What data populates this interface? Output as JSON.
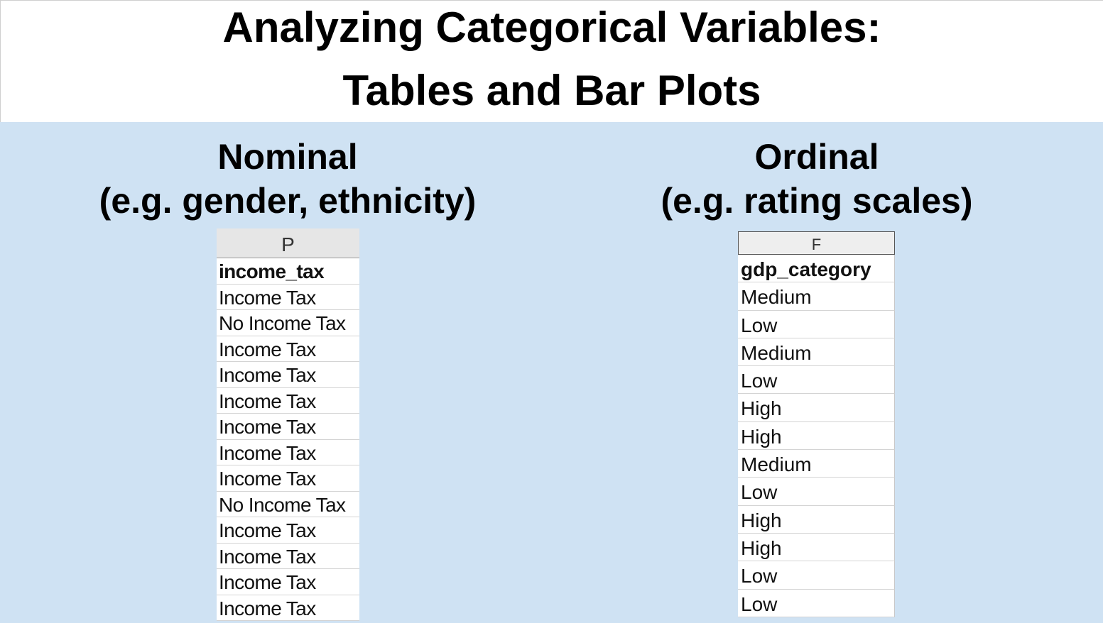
{
  "title": {
    "line1": "Analyzing Categorical Variables:",
    "line2": "Tables and Bar Plots"
  },
  "nominal": {
    "heading": "Nominal",
    "subheading": "(e.g. gender, ethnicity)",
    "column_letter": "P",
    "header": "income_tax",
    "rows": [
      "Income Tax",
      "No Income Tax",
      "Income Tax",
      "Income Tax",
      "Income Tax",
      "Income Tax",
      "Income Tax",
      "Income Tax",
      "No Income Tax",
      "Income Tax",
      "Income Tax",
      "Income Tax",
      "Income Tax"
    ]
  },
  "ordinal": {
    "heading": "Ordinal",
    "subheading": "(e.g. rating scales)",
    "column_letter": "F",
    "header": "gdp_category",
    "rows": [
      "Medium",
      "Low",
      "Medium",
      "Low",
      "High",
      "High",
      "Medium",
      "Low",
      "High",
      "High",
      "Low",
      "Low"
    ]
  },
  "colors": {
    "panel_background": "#cfe2f3",
    "title_background": "#ffffff"
  }
}
